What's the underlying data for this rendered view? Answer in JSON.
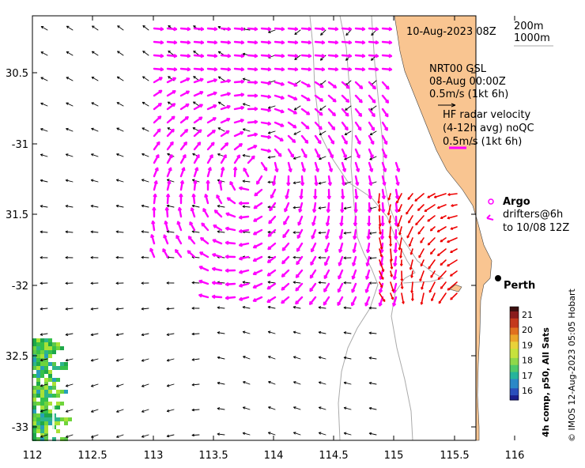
{
  "map": {
    "lon_ticks": [
      "112",
      "112.5",
      "113",
      "113.5",
      "114",
      "114.5",
      "115",
      "115.5",
      "116"
    ],
    "lat_ticks": [
      "30.5",
      "-31",
      "31.5",
      "-32",
      "32.5",
      "-33"
    ],
    "lon_range": [
      112,
      116.2
    ],
    "lat_range": [
      -33.1,
      -30.15
    ],
    "date_label": "10-Aug-2023 08Z",
    "depth_legend": [
      "200m",
      "1000m"
    ],
    "nrt_label": [
      "NRT00 GSL",
      "08-Aug 00:00Z",
      "0.5m/s (1kt 6h)"
    ],
    "hf_label": [
      "HF radar velocity",
      "(4-12h avg) noQC",
      "0.5m/s (1kt 6h)"
    ],
    "argo_label": "Argo",
    "drifters_label": [
      "drifters@6h",
      "to 10/08 12Z"
    ],
    "city_label": "Perth",
    "colorbar_title": "4h comp, p50, All Sats",
    "colorbar_ticks": [
      "21",
      "20",
      "19",
      "18",
      "17",
      "16"
    ],
    "credit": "© IMOS 12-Aug-2023 05:05 Hobart",
    "colors": {
      "land": "#f9c591",
      "model_arrows": "#000000",
      "hf_arrows": "#ff00ff",
      "drifter_arrows": "#ee0000",
      "isobaths": "#aaaaaa"
    }
  }
}
